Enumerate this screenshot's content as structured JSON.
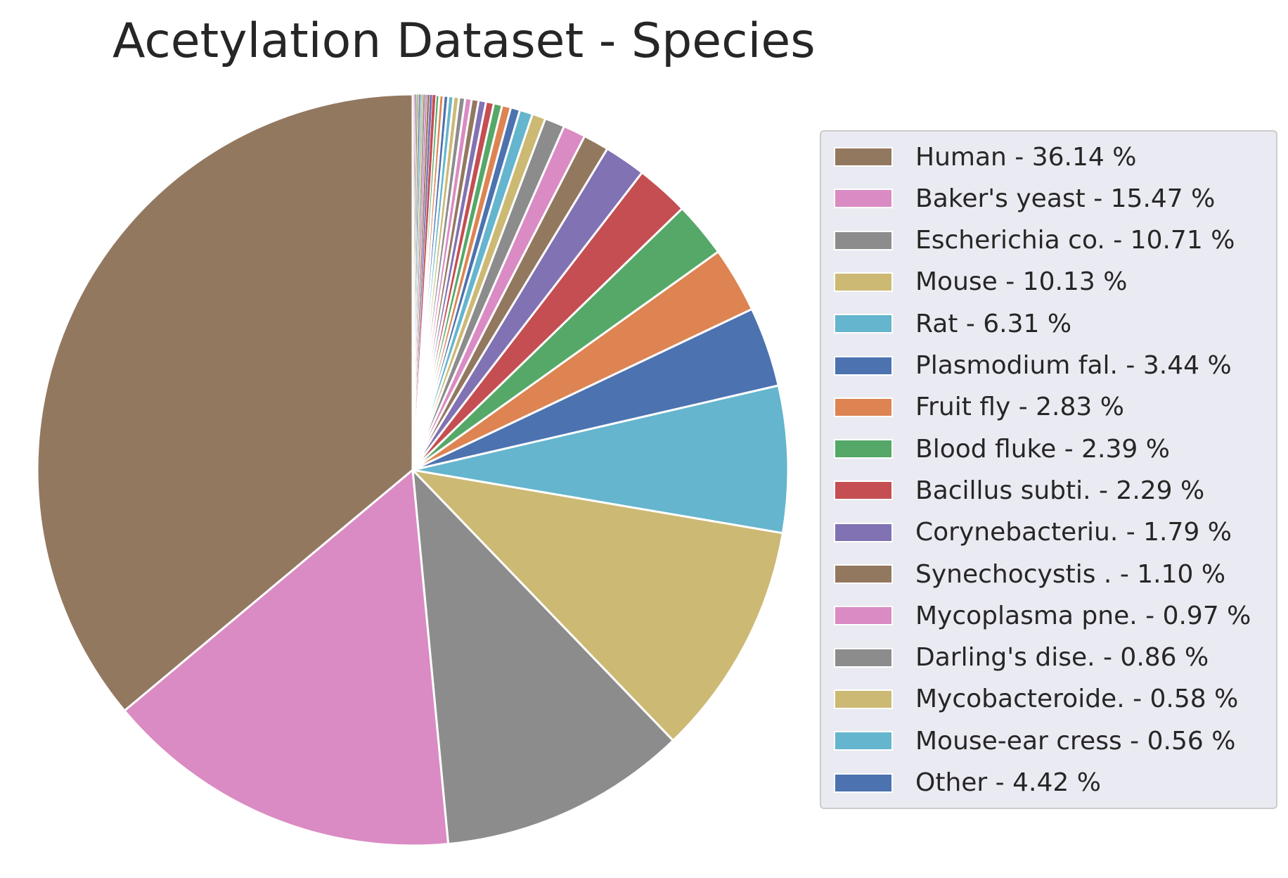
{
  "chart_data": {
    "type": "pie",
    "title": "Acetylation Dataset - Species",
    "start_angle_deg": 90,
    "direction": "counterclockwise",
    "legend_position": "right",
    "slices": [
      {
        "label": "Human - 36.14 %",
        "value": 36.14,
        "color": "#937860"
      },
      {
        "label": "Baker's yeast - 15.47 %",
        "value": 15.47,
        "color": "#da8bc3"
      },
      {
        "label": "Escherichia co. - 10.71 %",
        "value": 10.71,
        "color": "#8c8c8c"
      },
      {
        "label": "Mouse - 10.13 %",
        "value": 10.13,
        "color": "#ccb974"
      },
      {
        "label": "Rat - 6.31 %",
        "value": 6.31,
        "color": "#64b5cd"
      },
      {
        "label": "Plasmodium fal. - 3.44 %",
        "value": 3.44,
        "color": "#4c72b0"
      },
      {
        "label": "Fruit fly - 2.83 %",
        "value": 2.83,
        "color": "#dd8452"
      },
      {
        "label": "Blood fluke - 2.39 %",
        "value": 2.39,
        "color": "#55a868"
      },
      {
        "label": "Bacillus subti. - 2.29 %",
        "value": 2.29,
        "color": "#c44e52"
      },
      {
        "label": "Corynebacteriu. - 1.79 %",
        "value": 1.79,
        "color": "#8172b3"
      },
      {
        "label": "Synechocystis . - 1.10 %",
        "value": 1.1,
        "color": "#937860"
      },
      {
        "label": "Mycoplasma pne. - 0.97 %",
        "value": 0.97,
        "color": "#da8bc3"
      },
      {
        "label": "Darling's dise. - 0.86 %",
        "value": 0.86,
        "color": "#8c8c8c"
      },
      {
        "label": "Mycobacteroide. - 0.58 %",
        "value": 0.58,
        "color": "#ccb974"
      },
      {
        "label": "Mouse-ear cress - 0.56 %",
        "value": 0.56,
        "color": "#64b5cd"
      }
    ],
    "other_slices": {
      "label": "Other - 4.42 %",
      "value": 4.42,
      "approximate_values": [
        0.4,
        0.38,
        0.36,
        0.34,
        0.32,
        0.3,
        0.28,
        0.26,
        0.24,
        0.22,
        0.2,
        0.18,
        0.16,
        0.14,
        0.12,
        0.1,
        0.09,
        0.08,
        0.07,
        0.06,
        0.06,
        0.05,
        0.05,
        0.04,
        0.04,
        0.03,
        0.03,
        0.02
      ],
      "color_cycle": [
        "#4c72b0",
        "#dd8452",
        "#55a868",
        "#c44e52",
        "#8172b3",
        "#937860",
        "#da8bc3",
        "#8c8c8c",
        "#ccb974",
        "#64b5cd"
      ]
    }
  }
}
